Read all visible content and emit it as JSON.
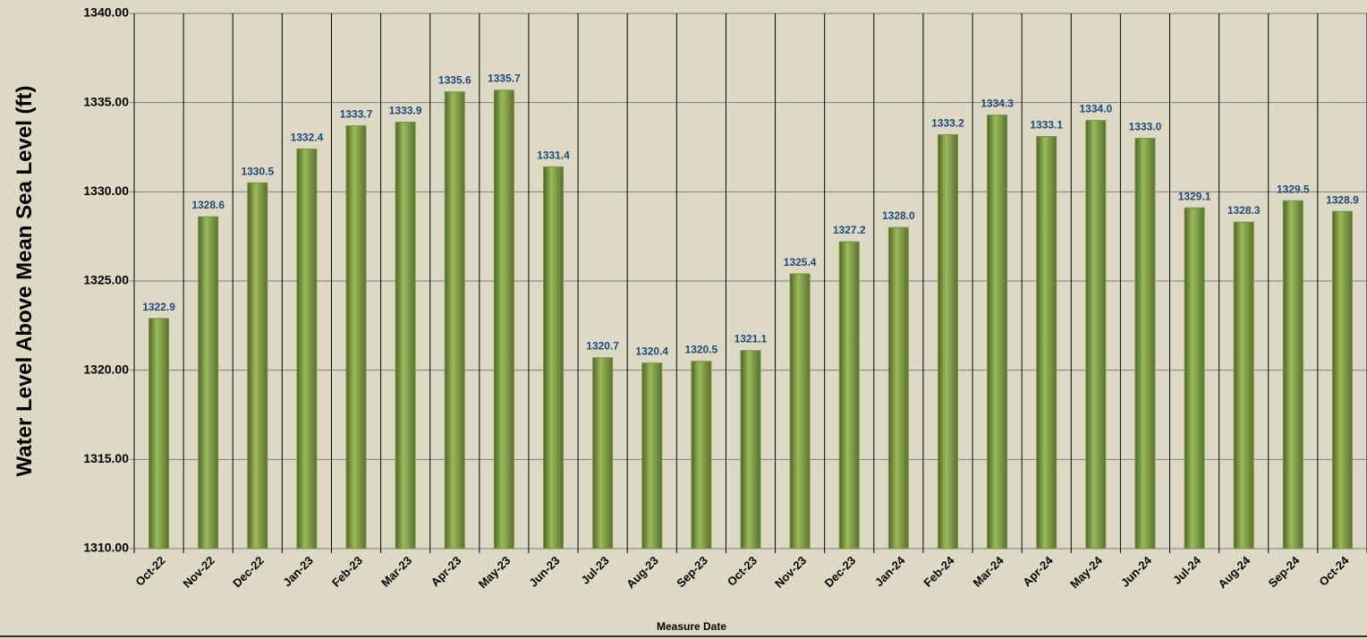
{
  "chart_data": {
    "type": "bar",
    "x_label": "Measure Date",
    "y_label": "Water Level Above Mean Sea Level (ft)",
    "categories": [
      "Oct-22",
      "Nov-22",
      "Dec-22",
      "Jan-23",
      "Feb-23",
      "Mar-23",
      "Apr-23",
      "May-23",
      "Jun-23",
      "Jul-23",
      "Aug-23",
      "Sep-23",
      "Oct-23",
      "Nov-23",
      "Dec-23",
      "Jan-24",
      "Feb-24",
      "Mar-24",
      "Apr-24",
      "May-24",
      "Jun-24",
      "Jul-24",
      "Aug-24",
      "Sep-24",
      "Oct-24"
    ],
    "values": [
      1322.9,
      1328.6,
      1330.5,
      1332.4,
      1333.7,
      1333.9,
      1335.6,
      1335.7,
      1331.4,
      1320.7,
      1320.4,
      1320.5,
      1321.1,
      1325.4,
      1327.2,
      1328.0,
      1333.2,
      1334.3,
      1333.1,
      1334.0,
      1333.0,
      1329.1,
      1328.3,
      1329.5,
      1328.9
    ],
    "value_labels": [
      "1322.9",
      "1328.6",
      "1330.5",
      "1332.4",
      "1333.7",
      "1333.9",
      "1335.6",
      "1335.7",
      "1331.4",
      "1320.7",
      "1320.4",
      "1320.5",
      "1321.1",
      "1325.4",
      "1327.2",
      "1328.0",
      "1333.2",
      "1334.3",
      "1333.1",
      "1334.0",
      "1333.0",
      "1329.1",
      "1328.3",
      "1329.5",
      "1328.9"
    ],
    "color": "#77933c",
    "ylim": [
      1310,
      1340
    ],
    "yticks": [
      {
        "value": 1310,
        "label": "1310.00"
      },
      {
        "value": 1315,
        "label": "1315.00"
      },
      {
        "value": 1320,
        "label": "1320.00"
      },
      {
        "value": 1325,
        "label": "1325.00"
      },
      {
        "value": 1330,
        "label": "1330.00"
      },
      {
        "value": 1335,
        "label": "1335.00"
      },
      {
        "value": 1340,
        "label": "1340.00"
      }
    ],
    "grid": true
  }
}
